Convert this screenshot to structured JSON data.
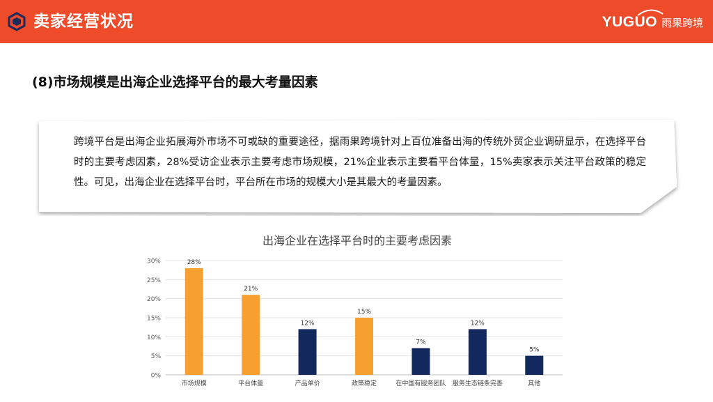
{
  "header": {
    "title": "卖家经营状况",
    "brand_en": "YUGUO",
    "brand_cn": "雨果跨境",
    "colors": {
      "bar": "#ee4b2b"
    }
  },
  "subtitle": "(8)市场规模是出海企业选择平台的最大考量因素",
  "callout": {
    "text": "跨境平台是出海企业拓展海外市场不可或缺的重要途径，据雨果跨境针对上百位准备出海的传统外贸企业调研显示，在选择平台时的主要考虑因素，28%受访企业表示主要考虑市场规模，21%企业表示主要看平台体量，15%卖家表示关注平台政策的稳定性。可见，出海企业在选择平台时，平台所在市场的规模大小是其最大的考量因素。"
  },
  "chart_data": {
    "type": "bar",
    "title": "出海企业在选择平台时的主要考虑因素",
    "categories": [
      "市场规模",
      "平台体量",
      "产品单价",
      "政策稳定",
      "在中国有服务团队",
      "服务生态链条完善",
      "其他"
    ],
    "values": [
      28,
      21,
      12,
      15,
      7,
      12,
      5
    ],
    "data_labels": [
      "28%",
      "21%",
      "12%",
      "15%",
      "7%",
      "12%",
      "5%"
    ],
    "bar_colors": [
      "#f7a030",
      "#f7a030",
      "#13295e",
      "#f7a030",
      "#13295e",
      "#13295e",
      "#13295e"
    ],
    "ylim": [
      0,
      30
    ],
    "yticks": [
      0,
      5,
      10,
      15,
      20,
      25,
      30
    ],
    "ytick_labels": [
      "0%",
      "5%",
      "10%",
      "15%",
      "20%",
      "25%",
      "30%"
    ],
    "grid": true,
    "xlabel": "",
    "ylabel": ""
  }
}
